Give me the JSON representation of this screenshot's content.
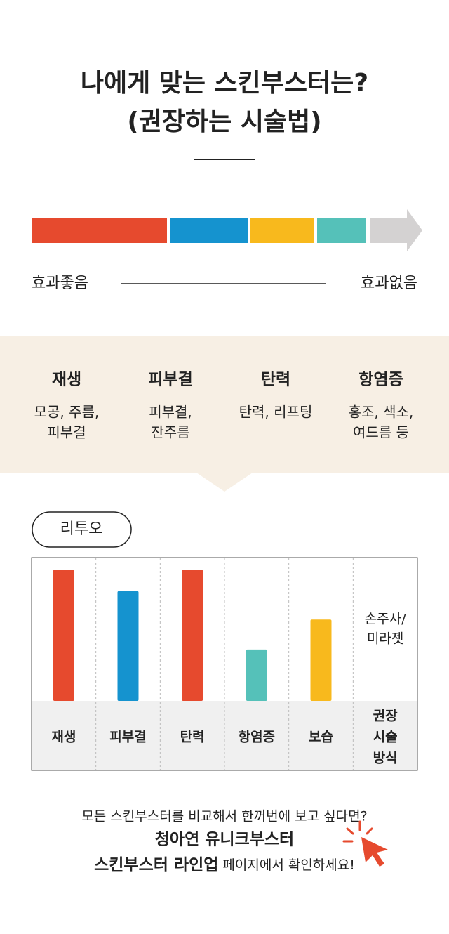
{
  "header": {
    "title": [
      "나에게 맞는 스킨부스터는?",
      "(권장하는 시술법)"
    ]
  },
  "scale": {
    "left": "효과좋음",
    "right": "효과없음"
  },
  "effects": [
    {
      "title": "재생",
      "desc": [
        "모공, 주름,",
        "피부결"
      ]
    },
    {
      "title": "피부결",
      "desc": [
        "피부결,",
        "잔주름"
      ]
    },
    {
      "title": "탄력",
      "desc": [
        "탄력, 리프팅"
      ]
    },
    {
      "title": "항염증",
      "desc": [
        "홍조, 색소,",
        "여드름 등"
      ]
    }
  ],
  "chart_data": {
    "type": "bar",
    "title": "리투오",
    "categories": [
      "재생",
      "피부결",
      "탄력",
      "항염증",
      "보습"
    ],
    "values": [
      92,
      77,
      92,
      36,
      57
    ],
    "colors": [
      "#e64a2e",
      "#1593cf",
      "#e64a2e",
      "#55c1b9",
      "#f8b91d"
    ],
    "ylim": [
      0,
      100
    ],
    "method_header": [
      "권장",
      "시술",
      "방식"
    ],
    "method": [
      "손주사/",
      "미라젯"
    ]
  },
  "footer": {
    "line1": "모든 스킨부스터를 비교해서 한꺼번에 보고 싶다면?",
    "line2": "청아연 유니크부스터",
    "line3": [
      "스킨부스터 라인업",
      "페이지에서 확인하세요!"
    ]
  }
}
